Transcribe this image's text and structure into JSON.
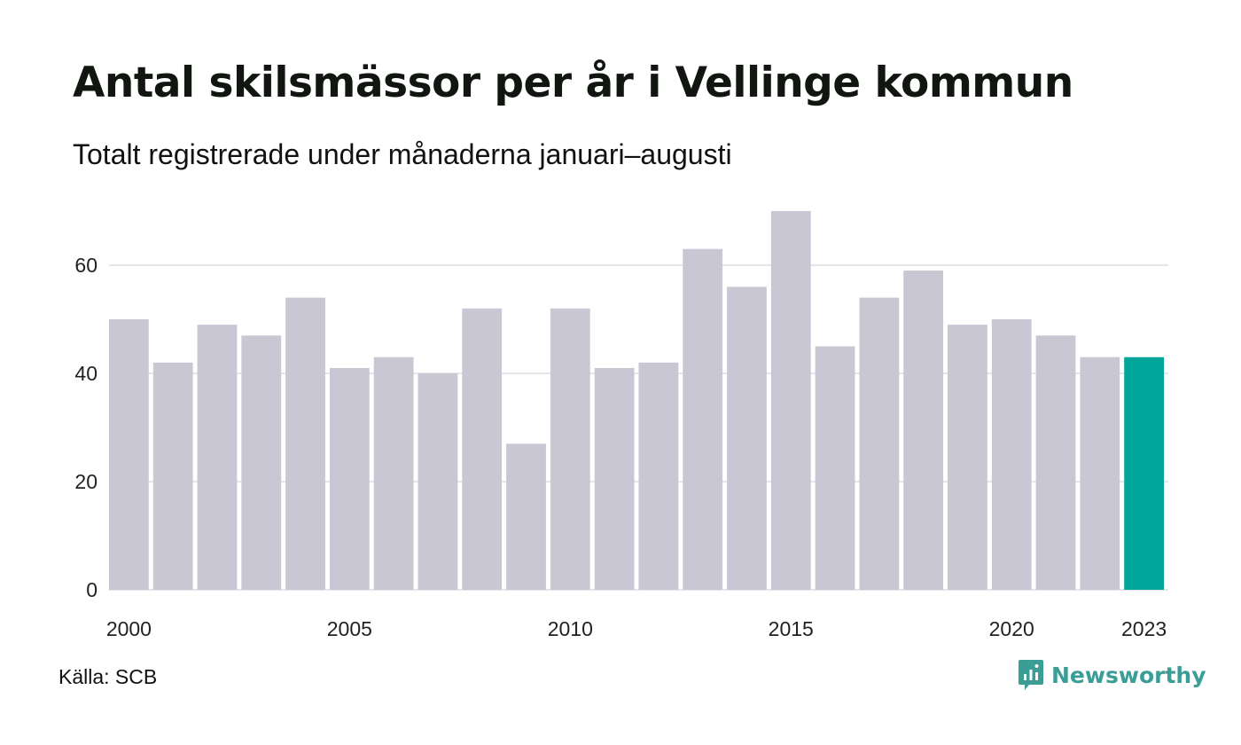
{
  "title": "Antal skilsmässor per år i Vellinge kommun",
  "subtitle": "Totalt registrerade under månaderna januari–augusti",
  "source": "Källa: SCB",
  "brand": {
    "name": "Newsworthy",
    "icon": "newsworthy-logo-icon",
    "color": "#3a9d96"
  },
  "chart_data": {
    "type": "bar",
    "categories": [
      "2000",
      "2001",
      "2002",
      "2003",
      "2004",
      "2005",
      "2006",
      "2007",
      "2008",
      "2009",
      "2010",
      "2011",
      "2012",
      "2013",
      "2014",
      "2015",
      "2016",
      "2017",
      "2018",
      "2019",
      "2020",
      "2021",
      "2022",
      "2023"
    ],
    "values": [
      50,
      42,
      49,
      47,
      54,
      41,
      43,
      40,
      52,
      27,
      52,
      41,
      42,
      63,
      56,
      70,
      45,
      54,
      59,
      49,
      50,
      47,
      43,
      43
    ],
    "x_tick_labels": [
      "2000",
      "2005",
      "2010",
      "2015",
      "2020",
      "2023"
    ],
    "y_ticks": [
      0,
      20,
      40,
      60
    ],
    "ylim": [
      0,
      70
    ],
    "grid": true,
    "colors": {
      "default": "#c8c7d3",
      "highlight": "#00a69a",
      "grid": "#e6e6ea"
    },
    "highlight_category": "2023"
  }
}
